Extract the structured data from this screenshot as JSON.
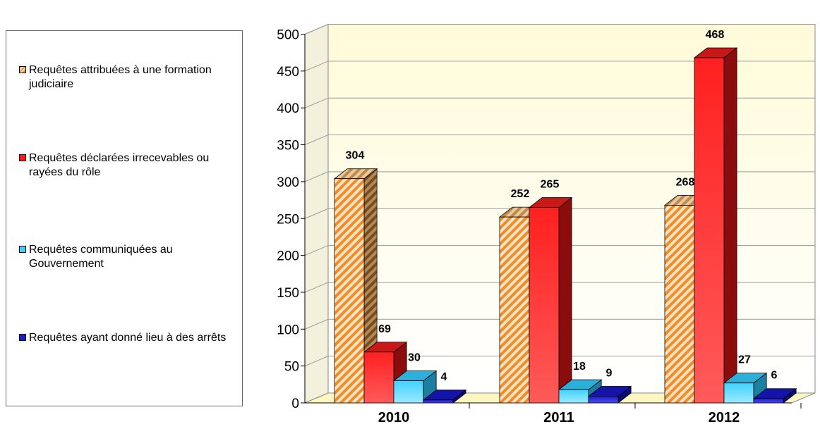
{
  "chart_data": {
    "type": "bar",
    "categories": [
      "2010",
      "2011",
      "2012"
    ],
    "series": [
      {
        "name": "Requêtes attribuées à une formation judiciaire",
        "values": [
          304,
          252,
          268
        ],
        "color": "#f7b977",
        "pattern": "hatched-orange"
      },
      {
        "name": "Requêtes déclarées irrecevables ou rayées du rôle",
        "values": [
          69,
          265,
          468
        ],
        "color": "#ff1a1a"
      },
      {
        "name": "Requêtes communiquées au Gouvernement",
        "values": [
          30,
          18,
          27
        ],
        "color": "#3fd2ff"
      },
      {
        "name": "Requêtes ayant donné lieu à des arrêts",
        "values": [
          4,
          9,
          6
        ],
        "color": "#1c1ccf"
      }
    ],
    "y_ticks": [
      "0",
      "50",
      "100",
      "150",
      "200",
      "250",
      "300",
      "350",
      "400",
      "450",
      "500"
    ],
    "ylim": [
      0,
      500
    ],
    "legend_position": "left",
    "grid": true,
    "style": "3d-bars",
    "title": "",
    "xlabel": "",
    "ylabel": ""
  }
}
